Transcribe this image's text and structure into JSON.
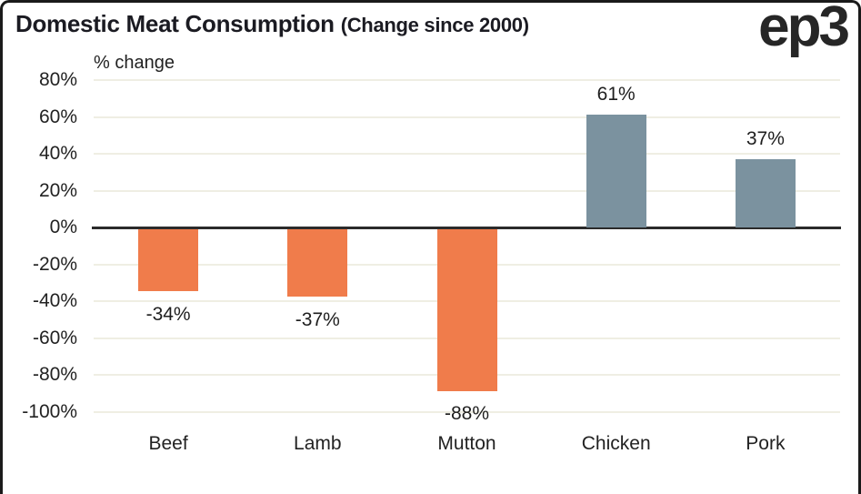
{
  "header": {
    "title": "Domestic Meat Consumption",
    "subtitle": "(Change since 2000)",
    "logo": "ep3"
  },
  "chart_data": {
    "type": "bar",
    "title": "Domestic Meat Consumption (Change since 2000)",
    "ylabel": "% change",
    "categories": [
      "Beef",
      "Lamb",
      "Mutton",
      "Chicken",
      "Pork"
    ],
    "values": [
      -34,
      -37,
      -88,
      61,
      37
    ],
    "value_labels": [
      "-34%",
      "-37%",
      "-88%",
      "61%",
      "37%"
    ],
    "ylim": [
      -100,
      80
    ],
    "ytick_step": 20,
    "ytick_labels": [
      "80%",
      "60%",
      "40%",
      "20%",
      "0%",
      "-20%",
      "-40%",
      "-60%",
      "-80%",
      "-100%"
    ],
    "grid": true,
    "legend": "none",
    "negative_color": "#f07c4b",
    "positive_color": "#7b929f",
    "gridline_color": "#efeee3",
    "zero_line_color": "#2b2b2b"
  }
}
